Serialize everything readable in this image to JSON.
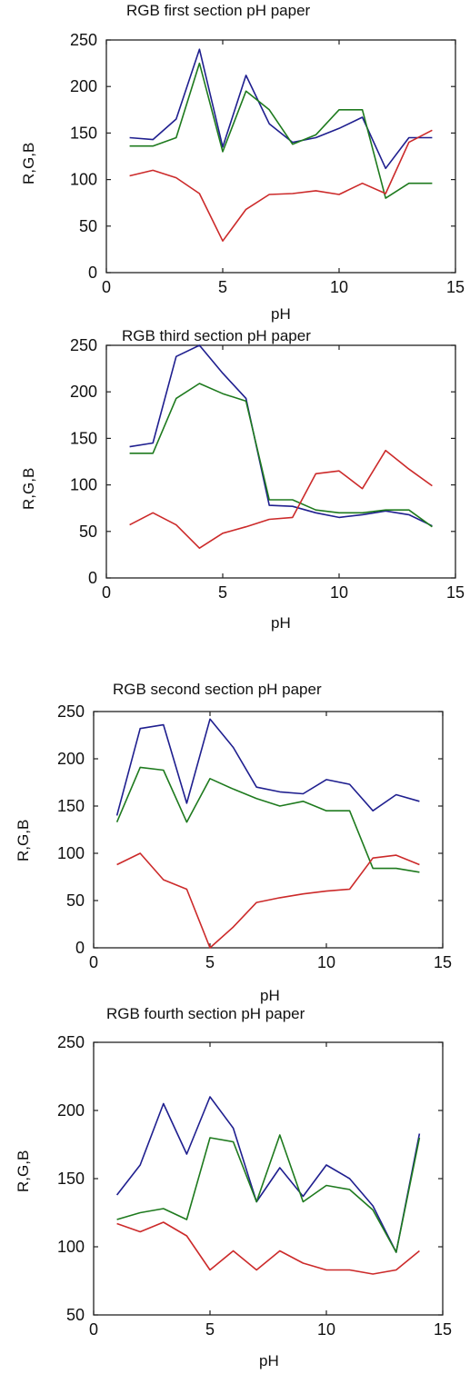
{
  "chart_data": [
    {
      "type": "line",
      "title": "RGB first section pH paper",
      "xlabel": "pH",
      "ylabel": "R,G,B",
      "xlim": [
        0,
        15
      ],
      "ylim": [
        0,
        250
      ],
      "xticks": [
        0,
        5,
        10,
        15
      ],
      "yticks": [
        0,
        50,
        100,
        150,
        200,
        250
      ],
      "x": [
        1,
        2,
        3,
        4,
        5,
        6,
        7,
        8,
        9,
        10,
        11,
        12,
        13,
        14
      ],
      "series": [
        {
          "color": "#1f1f8f",
          "values": [
            145,
            143,
            165,
            240,
            135,
            212,
            160,
            140,
            145,
            155,
            167,
            112,
            145,
            145
          ]
        },
        {
          "color": "#1e7a1e",
          "values": [
            136,
            136,
            145,
            225,
            130,
            195,
            175,
            138,
            148,
            175,
            175,
            80,
            96,
            96
          ]
        },
        {
          "color": "#cc2a2a",
          "values": [
            104,
            110,
            102,
            85,
            34,
            68,
            84,
            85,
            88,
            84,
            96,
            85,
            140,
            153
          ]
        }
      ]
    },
    {
      "type": "line",
      "title": "RGB third section pH paper",
      "xlabel": "pH",
      "ylabel": "R,G,B",
      "xlim": [
        0,
        15
      ],
      "ylim": [
        0,
        250
      ],
      "xticks": [
        0,
        5,
        10,
        15
      ],
      "yticks": [
        0,
        50,
        100,
        150,
        200,
        250
      ],
      "x": [
        1,
        2,
        3,
        4,
        5,
        6,
        7,
        8,
        9,
        10,
        11,
        12,
        13,
        14
      ],
      "series": [
        {
          "color": "#1f1f8f",
          "values": [
            141,
            145,
            238,
            250,
            220,
            193,
            78,
            77,
            70,
            65,
            68,
            72,
            68,
            56
          ]
        },
        {
          "color": "#1e7a1e",
          "values": [
            134,
            134,
            193,
            209,
            198,
            190,
            84,
            84,
            73,
            70,
            70,
            73,
            73,
            55
          ]
        },
        {
          "color": "#cc2a2a",
          "values": [
            57,
            70,
            57,
            32,
            48,
            55,
            63,
            65,
            112,
            115,
            96,
            137,
            117,
            99
          ]
        }
      ]
    },
    {
      "type": "line",
      "title": "RGB second section pH paper",
      "xlabel": "pH",
      "ylabel": "R,G,B",
      "xlim": [
        0,
        15
      ],
      "ylim": [
        0,
        250
      ],
      "xticks": [
        0,
        5,
        10,
        15
      ],
      "yticks": [
        0,
        50,
        100,
        150,
        200,
        250
      ],
      "x": [
        1,
        2,
        3,
        4,
        5,
        6,
        7,
        8,
        9,
        10,
        11,
        12,
        13,
        14
      ],
      "series": [
        {
          "color": "#1f1f8f",
          "values": [
            140,
            232,
            236,
            153,
            242,
            212,
            170,
            165,
            163,
            178,
            173,
            145,
            162,
            155
          ]
        },
        {
          "color": "#1e7a1e",
          "values": [
            133,
            191,
            188,
            133,
            179,
            168,
            158,
            150,
            155,
            145,
            145,
            84,
            84,
            80
          ]
        },
        {
          "color": "#cc2a2a",
          "values": [
            88,
            100,
            72,
            62,
            0,
            22,
            48,
            53,
            57,
            60,
            62,
            95,
            98,
            88
          ]
        }
      ]
    },
    {
      "type": "line",
      "title": "RGB fourth section pH paper",
      "xlabel": "pH",
      "ylabel": "R,G,B",
      "xlim": [
        0,
        15
      ],
      "ylim": [
        50,
        250
      ],
      "xticks": [
        0,
        5,
        10,
        15
      ],
      "yticks": [
        50,
        100,
        150,
        200,
        250
      ],
      "x": [
        1,
        2,
        3,
        4,
        5,
        6,
        7,
        8,
        9,
        10,
        11,
        12,
        13,
        14
      ],
      "series": [
        {
          "color": "#1f1f8f",
          "values": [
            138,
            160,
            205,
            168,
            210,
            187,
            133,
            158,
            137,
            160,
            150,
            130,
            96,
            183
          ]
        },
        {
          "color": "#1e7a1e",
          "values": [
            120,
            125,
            128,
            120,
            180,
            177,
            133,
            182,
            133,
            145,
            142,
            127,
            96,
            180
          ]
        },
        {
          "color": "#cc2a2a",
          "values": [
            117,
            111,
            118,
            108,
            83,
            97,
            83,
            97,
            88,
            83,
            83,
            80,
            83,
            97
          ]
        }
      ]
    }
  ]
}
